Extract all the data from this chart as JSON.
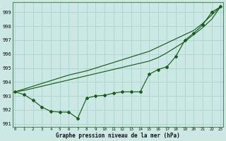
{
  "xlabel": "Graphe pression niveau de la mer (hPa)",
  "bg_color": "#cce8e4",
  "grid_color": "#aad4cf",
  "line_color": "#1a5c1a",
  "x_ticks": [
    0,
    1,
    2,
    3,
    4,
    5,
    6,
    7,
    8,
    9,
    10,
    11,
    12,
    13,
    14,
    15,
    16,
    17,
    18,
    19,
    20,
    21,
    22,
    23
  ],
  "ylim": [
    990.8,
    999.7
  ],
  "yticks": [
    991,
    992,
    993,
    994,
    995,
    996,
    997,
    998,
    999
  ],
  "series1": [
    993.3,
    993.1,
    992.7,
    992.2,
    991.9,
    991.85,
    991.85,
    991.4,
    992.85,
    993.0,
    993.05,
    993.2,
    993.3,
    993.3,
    993.3,
    994.55,
    994.9,
    995.1,
    995.85,
    997.0,
    997.5,
    998.1,
    999.0,
    999.4
  ],
  "series2": [
    993.3,
    993.4,
    993.55,
    993.7,
    993.85,
    994.0,
    994.15,
    994.3,
    994.45,
    994.6,
    994.75,
    994.9,
    995.05,
    995.2,
    995.35,
    995.5,
    995.75,
    996.1,
    996.5,
    996.9,
    997.4,
    997.9,
    998.5,
    999.4
  ],
  "series3": [
    993.3,
    993.5,
    993.7,
    993.9,
    994.1,
    994.3,
    994.5,
    994.65,
    994.8,
    995.0,
    995.2,
    995.4,
    995.6,
    995.8,
    996.0,
    996.2,
    996.5,
    996.8,
    997.1,
    997.4,
    997.7,
    998.2,
    998.8,
    999.4
  ]
}
